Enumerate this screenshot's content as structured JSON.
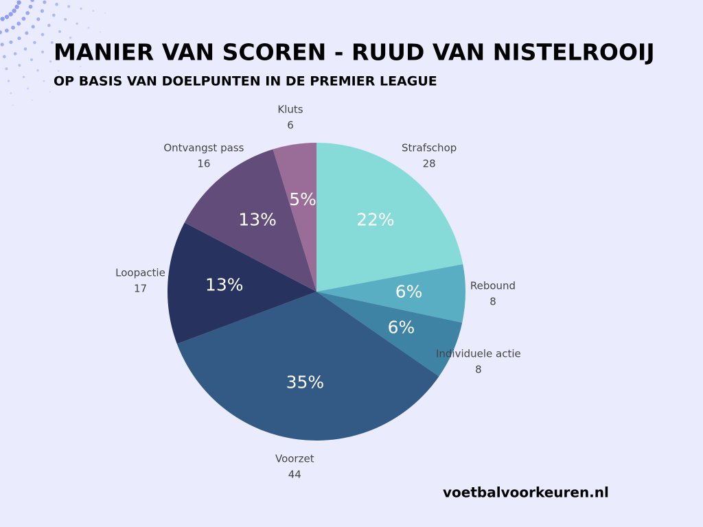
{
  "chart_data": {
    "type": "pie",
    "title": "MANIER VAN SCOREN - RUUD VAN NISTELROOIJ",
    "subtitle": "OP BASIS VAN DOELPUNTEN IN DE PREMIER LEAGUE",
    "categories": [
      "Strafschop",
      "Rebound",
      "Individuele actie",
      "Voorzet",
      "Loopactie",
      "Ontvangst pass",
      "Kluts"
    ],
    "values": [
      28,
      8,
      8,
      44,
      17,
      16,
      6
    ],
    "value_labels": [
      "22%",
      "6%",
      "6%",
      "35%",
      "13%",
      "13%",
      "5%"
    ],
    "colors": [
      "#86dbd9",
      "#5aaec4",
      "#3e82a4",
      "#335a85",
      "#28325e",
      "#624d7a",
      "#9a6d98"
    ]
  },
  "source": "voetbalvoorkeuren.nl"
}
